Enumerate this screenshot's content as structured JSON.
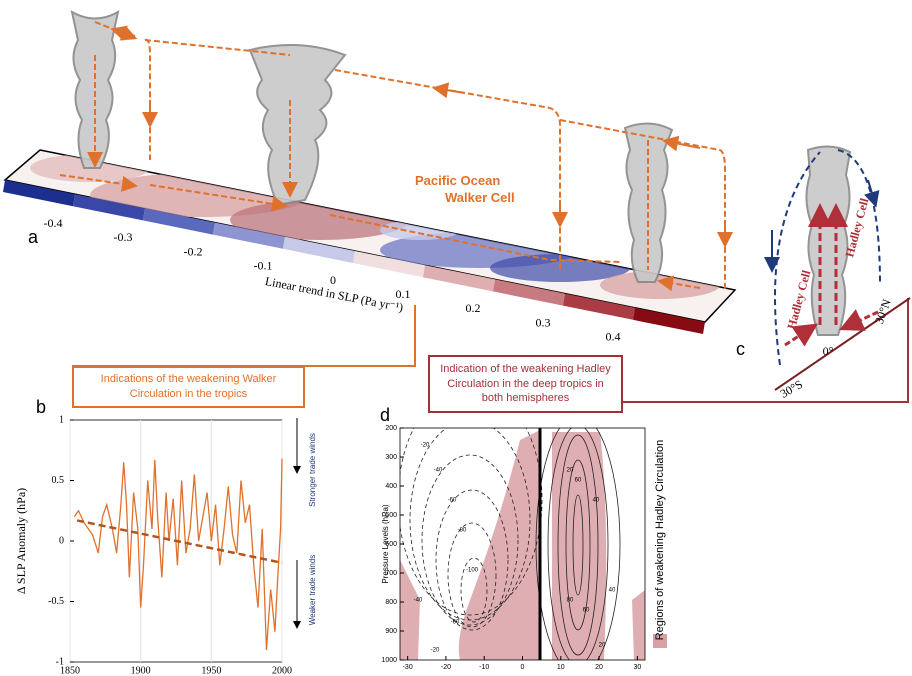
{
  "panel_a": {
    "label": "a",
    "title": "Pacific Ocean Walker Cell",
    "colorbar": {
      "label": "Linear trend in SLP (Pa yr⁻¹)",
      "lim": [
        -0.5,
        0.5
      ],
      "ticks": [
        -0.4,
        -0.3,
        -0.2,
        -0.1,
        0,
        0.1,
        0.2,
        0.3,
        0.4
      ],
      "colors": [
        "#1c2f8e",
        "#3847a8",
        "#5a69be",
        "#8c95d2",
        "#c6cae8",
        "#f1dfe0",
        "#deaeb1",
        "#c77a80",
        "#ab3c45",
        "#870b12"
      ]
    }
  },
  "callouts": {
    "walker": "Indications of the weakening Walker Circulation in the tropics",
    "hadley": "Indication of the weakening Hadley Circulation in the deep tropics in both hemispheres"
  },
  "panel_c": {
    "label": "c",
    "cell_left": "Hadley Cell",
    "cell_right": "Hadley Cell",
    "north": "30°N",
    "equator": "0°",
    "south": "30°S"
  },
  "panel_b": {
    "label": "b",
    "type": "line",
    "ylabel": "Δ SLP Anomaly (hPa)",
    "color": "#e0712c",
    "x": [
      1853,
      1856,
      1860,
      1863,
      1866,
      1870,
      1873,
      1876,
      1880,
      1883,
      1886,
      1888,
      1890,
      1892,
      1895,
      1898,
      1900,
      1902,
      1905,
      1908,
      1910,
      1912,
      1915,
      1918,
      1920,
      1923,
      1926,
      1929,
      1932,
      1935,
      1938,
      1941,
      1944,
      1947,
      1950,
      1953,
      1956,
      1959,
      1962,
      1965,
      1968,
      1971,
      1974,
      1977,
      1980,
      1983,
      1986,
      1989,
      1992,
      1995,
      1997,
      1999,
      2000
    ],
    "values": [
      0.2,
      0.25,
      0.15,
      0.1,
      0.05,
      -0.1,
      0.2,
      0.3,
      0.1,
      -0.1,
      0.3,
      0.65,
      0.3,
      -0.3,
      0.4,
      0.1,
      -0.55,
      -0.2,
      0.5,
      0.1,
      0.67,
      0.2,
      -0.3,
      0.4,
      0,
      0.35,
      -0.2,
      0.5,
      -0.1,
      0.1,
      0.55,
      0,
      0.2,
      0.4,
      0,
      0.3,
      -0.2,
      0.1,
      0.45,
      0.05,
      -0.1,
      0.5,
      0.15,
      0.3,
      -0.2,
      -0.55,
      0.1,
      -0.9,
      -0.4,
      -0.75,
      -0.3,
      0.1,
      0.68
    ],
    "trend": {
      "x": [
        1855,
        2000
      ],
      "values": [
        0.17,
        -0.18
      ],
      "color": "#b5531c"
    },
    "xlim": [
      1850,
      2000
    ],
    "ylim": [
      -1,
      1
    ],
    "xticks": [
      1850,
      1900,
      1950,
      2000
    ],
    "yticks": [
      -1,
      -0.5,
      0,
      0.5,
      1
    ],
    "annotation_up": "Stronger trade winds",
    "annotation_down": "Weaker trade winds"
  },
  "panel_d": {
    "label": "d",
    "ylabel": "Pressure Levels (hPa)",
    "xlim": [
      -32,
      32
    ],
    "ylim": [
      1000,
      200
    ],
    "xticks": [
      -30,
      -20,
      -10,
      0,
      10,
      20,
      30
    ],
    "yticks": [
      200,
      300,
      400,
      500,
      600,
      700,
      800,
      900,
      1000
    ],
    "legend": "Regions of weakening Hadley Circulation",
    "legend_color": "#d9a0a4",
    "contour_labels": [
      -20,
      -40,
      -60,
      -80,
      -100,
      -40,
      -60,
      -20,
      20,
      40,
      60,
      80,
      60,
      40,
      20
    ]
  }
}
